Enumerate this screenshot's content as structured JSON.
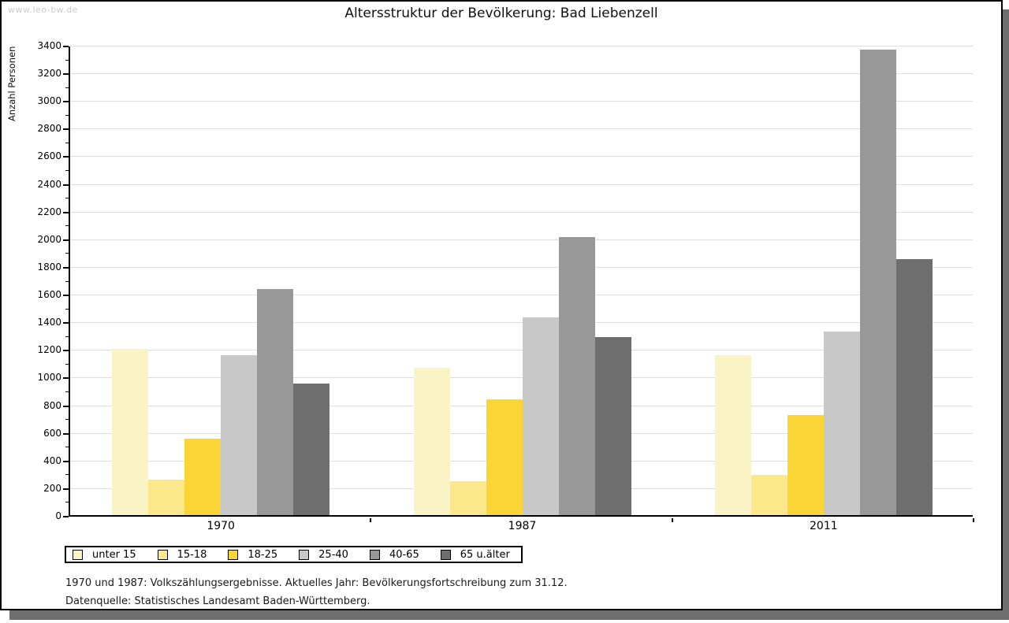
{
  "watermark": "www.leo-bw.de",
  "footer": {
    "line1": "1970 und 1987: Volkszählungsergebnisse. Aktuelles Jahr: Bevölkerungsfortschreibung zum 31.12.",
    "line2": "Datenquelle: Statistisches Landesamt Baden-Württemberg."
  },
  "chart_data": {
    "type": "bar",
    "title": "Altersstruktur der Bevölkerung: Bad Liebenzell",
    "ylabel": "Anzahl Personen",
    "xlabel": "",
    "categories": [
      "1970",
      "1987",
      "2011"
    ],
    "series": [
      {
        "name": "unter 15",
        "color": "#faf3c5",
        "values": [
          1200,
          1065,
          1155
        ]
      },
      {
        "name": "15-18",
        "color": "#fbe88a",
        "values": [
          255,
          245,
          290
        ]
      },
      {
        "name": "18-25",
        "color": "#fbd535",
        "values": [
          555,
          835,
          725
        ]
      },
      {
        "name": "25-40",
        "color": "#c8c8c8",
        "values": [
          1155,
          1430,
          1325
        ]
      },
      {
        "name": "40-65",
        "color": "#989898",
        "values": [
          1635,
          2010,
          3365
        ]
      },
      {
        "name": "65 u.älter",
        "color": "#6e6e6e",
        "values": [
          950,
          1290,
          1850
        ]
      }
    ],
    "ylim": [
      0,
      3400
    ],
    "ytick_step": 200,
    "minor_tick_step": 100,
    "grid": true,
    "legend_position": "bottom-left",
    "axis_color": "#000000",
    "gridline_color": "#dedede"
  }
}
